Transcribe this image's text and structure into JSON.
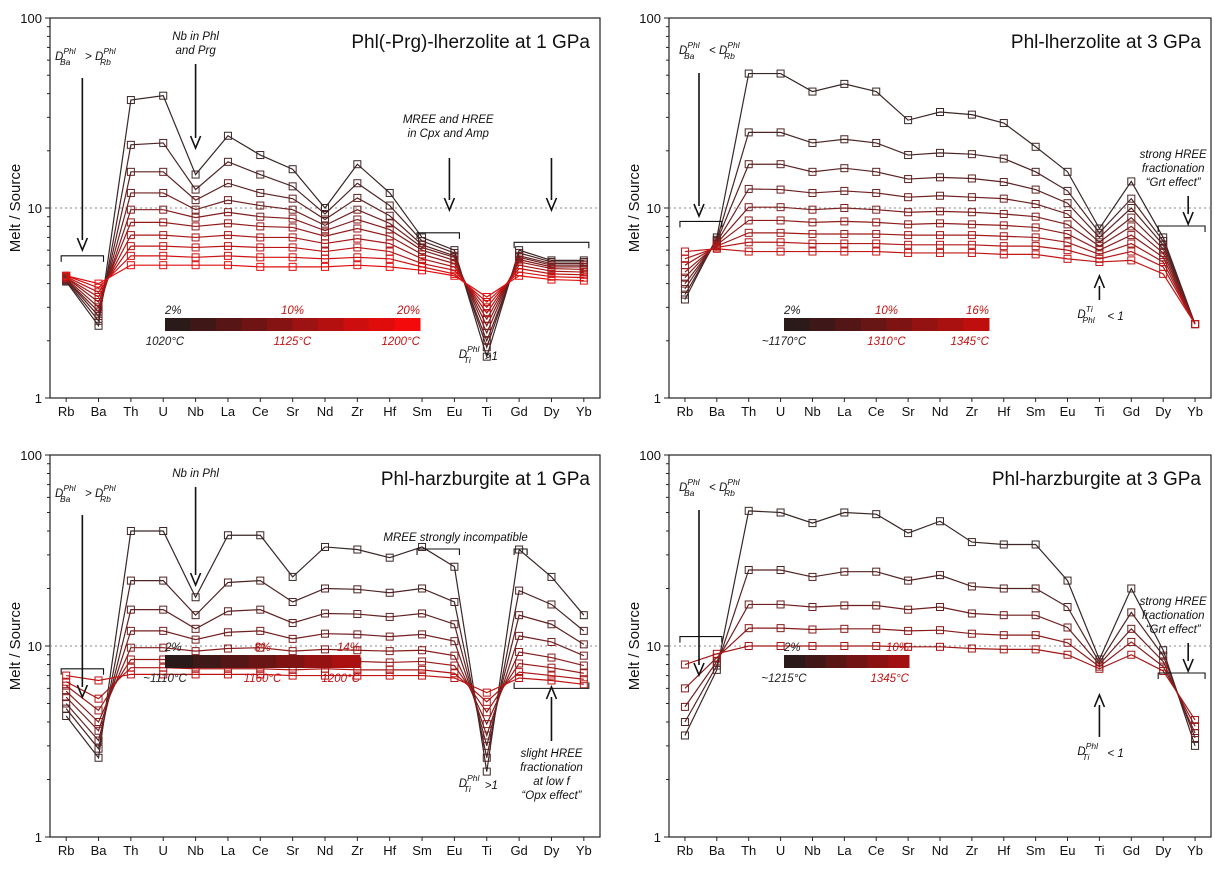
{
  "chart_data": [
    {
      "type": "line",
      "title": "Phl(-Prg)-lherzolite at 1 GPa",
      "ylabel": "Melt / Source",
      "yscale": "log",
      "ylim": [
        1,
        100
      ],
      "y_ticks": [
        "1",
        "10",
        "100"
      ],
      "reference_line": 10,
      "categories": [
        "Rb",
        "Ba",
        "Th",
        "U",
        "Nb",
        "La",
        "Ce",
        "Sr",
        "Nd",
        "Zr",
        "Hf",
        "Sm",
        "Eu",
        "Ti",
        "Gd",
        "Dy",
        "Yb"
      ],
      "colorbar": {
        "top_labels": [
          "2%",
          "10%",
          "20%"
        ],
        "bottom_labels": [
          "1020°C",
          "1125°C",
          "1200°C"
        ],
        "colors": [
          "#2b1a1a",
          "#401717",
          "#571515",
          "#6e1414",
          "#861313",
          "#9d1212",
          "#b41010",
          "#cc0e0e",
          "#e00c0c",
          "#f40a0a"
        ]
      },
      "series_colors": [
        "#3a2626",
        "#4d2323",
        "#5e2121",
        "#6f1f1f",
        "#821c1c",
        "#951a1a",
        "#a81717",
        "#bb1414",
        "#cf1111",
        "#e20d0d"
      ],
      "series": [
        {
          "values": [
            4.1,
            2.4,
            37,
            39,
            15,
            24,
            19,
            16,
            10,
            17,
            12,
            7.0,
            6.0,
            1.65,
            6.0,
            5.3,
            5.3
          ]
        },
        {
          "values": [
            4.15,
            2.55,
            21.5,
            22,
            12.5,
            17.5,
            15,
            13,
            9.3,
            13.5,
            10.3,
            6.7,
            5.8,
            1.85,
            5.8,
            5.2,
            5.2
          ]
        },
        {
          "values": [
            4.2,
            2.7,
            15.5,
            15.5,
            11,
            13.5,
            12,
            11.2,
            8.7,
            11.3,
            9.1,
            6.4,
            5.6,
            2.0,
            5.6,
            5.1,
            5.1
          ]
        },
        {
          "values": [
            4.2,
            2.85,
            12,
            12,
            9.8,
            11,
            10.3,
            9.8,
            8.1,
            9.8,
            8.3,
            6.2,
            5.5,
            2.2,
            5.5,
            5.0,
            5.0
          ]
        },
        {
          "values": [
            4.25,
            3.0,
            9.8,
            9.8,
            8.9,
            9.5,
            9.0,
            8.8,
            7.6,
            8.7,
            7.7,
            6.0,
            5.3,
            2.4,
            5.35,
            4.9,
            4.9
          ]
        },
        {
          "values": [
            4.3,
            3.2,
            8.4,
            8.4,
            8.0,
            8.3,
            8.0,
            7.9,
            7.1,
            7.8,
            7.1,
            5.7,
            5.1,
            2.6,
            5.2,
            4.8,
            4.75
          ]
        },
        {
          "values": [
            4.3,
            3.4,
            7.2,
            7.2,
            7.0,
            7.2,
            7.0,
            7.0,
            6.5,
            6.9,
            6.5,
            5.4,
            4.9,
            2.8,
            5.0,
            4.65,
            4.6
          ]
        },
        {
          "values": [
            4.35,
            3.6,
            6.3,
            6.3,
            6.2,
            6.3,
            6.2,
            6.2,
            5.9,
            6.2,
            5.9,
            5.1,
            4.7,
            3.0,
            4.8,
            4.5,
            4.45
          ]
        },
        {
          "values": [
            4.4,
            3.8,
            5.6,
            5.6,
            5.5,
            5.6,
            5.5,
            5.5,
            5.4,
            5.5,
            5.4,
            4.9,
            4.5,
            3.2,
            4.6,
            4.35,
            4.3
          ]
        },
        {
          "values": [
            4.4,
            4.0,
            5.0,
            5.0,
            5.0,
            5.0,
            4.9,
            4.9,
            4.9,
            5.0,
            4.9,
            4.7,
            4.4,
            3.4,
            4.4,
            4.2,
            4.15
          ]
        }
      ],
      "annotations": {
        "nb": [
          "Nb in Phl",
          "and Prg"
        ],
        "ree": [
          "MREE and HREE",
          "in Cpx and Amp"
        ],
        "ti": ">1"
      }
    },
    {
      "type": "line",
      "title": "Phl-lherzolite at 3 GPa",
      "ylabel": "Melt / Source",
      "yscale": "log",
      "ylim": [
        1,
        100
      ],
      "y_ticks": [
        "1",
        "10",
        "100"
      ],
      "reference_line": 10,
      "categories": [
        "Rb",
        "Ba",
        "Th",
        "U",
        "Nb",
        "La",
        "Ce",
        "Sr",
        "Nd",
        "Zr",
        "Hf",
        "Sm",
        "Eu",
        "Ti",
        "Gd",
        "Dy",
        "Yb"
      ],
      "colorbar": {
        "top_labels": [
          "2%",
          "10%",
          "16%"
        ],
        "bottom_labels": [
          "~1170°C",
          "1310°C",
          "1345°C"
        ],
        "colors": [
          "#2b1a1a",
          "#3e1818",
          "#531616",
          "#681515",
          "#7e1313",
          "#941212",
          "#a91010",
          "#bf0e0e"
        ]
      },
      "series_colors": [
        "#3a2626",
        "#4b2424",
        "#5c2222",
        "#6d2020",
        "#7e1e1e",
        "#8f1c1c",
        "#a01a1a",
        "#b21818",
        "#c31616"
      ],
      "series": [
        {
          "values": [
            3.3,
            7.0,
            51,
            51,
            41,
            45,
            41,
            29,
            32,
            31,
            28,
            21,
            15.5,
            7.8,
            13.8,
            7.0,
            2.45
          ]
        },
        {
          "values": [
            3.5,
            6.8,
            25,
            25,
            22,
            23,
            22,
            19,
            19.5,
            19.2,
            18.2,
            15.5,
            12.3,
            7.4,
            11.2,
            6.7,
            2.45
          ]
        },
        {
          "values": [
            3.75,
            6.7,
            17,
            17,
            15.5,
            16.2,
            15.5,
            14.2,
            14.5,
            14.3,
            13.7,
            12.5,
            10.6,
            7.0,
            10.0,
            6.4,
            2.45
          ]
        },
        {
          "values": [
            4.0,
            6.6,
            12.6,
            12.5,
            12,
            12.3,
            12,
            11.4,
            11.6,
            11.4,
            11.2,
            10.5,
            9.3,
            6.6,
            8.9,
            6.1,
            2.45
          ]
        },
        {
          "values": [
            4.3,
            6.5,
            10.1,
            10.1,
            9.8,
            10,
            9.8,
            9.5,
            9.6,
            9.5,
            9.3,
            9.0,
            8.2,
            6.3,
            8.0,
            5.8,
            2.45
          ]
        },
        {
          "values": [
            4.6,
            6.4,
            8.6,
            8.6,
            8.4,
            8.5,
            8.4,
            8.2,
            8.3,
            8.2,
            8.1,
            7.9,
            7.3,
            6.0,
            7.2,
            5.5,
            2.45
          ]
        },
        {
          "values": [
            5.0,
            6.3,
            7.4,
            7.4,
            7.3,
            7.3,
            7.3,
            7.2,
            7.2,
            7.2,
            7.1,
            7.0,
            6.6,
            5.7,
            6.5,
            5.2,
            2.45
          ]
        },
        {
          "values": [
            5.4,
            6.2,
            6.6,
            6.6,
            6.5,
            6.5,
            6.5,
            6.4,
            6.4,
            6.4,
            6.3,
            6.3,
            6.0,
            5.4,
            5.9,
            4.9,
            2.45
          ]
        },
        {
          "values": [
            5.9,
            6.1,
            5.9,
            5.9,
            5.9,
            5.9,
            5.9,
            5.8,
            5.8,
            5.8,
            5.7,
            5.7,
            5.4,
            5.2,
            5.3,
            4.5,
            2.45
          ]
        }
      ],
      "annotations": {
        "grt": [
          "strong HREE",
          "fractionation",
          "“Grt effect”"
        ],
        "ti": "< 1"
      }
    },
    {
      "type": "line",
      "title": "Phl-harzburgite at 1 GPa",
      "ylabel": "Melt / Source",
      "yscale": "log",
      "ylim": [
        1,
        100
      ],
      "y_ticks": [
        "1",
        "10",
        "100"
      ],
      "reference_line": 10,
      "categories": [
        "Rb",
        "Ba",
        "Th",
        "U",
        "Nb",
        "La",
        "Ce",
        "Sr",
        "Nd",
        "Zr",
        "Hf",
        "Sm",
        "Eu",
        "Ti",
        "Gd",
        "Dy",
        "Yb"
      ],
      "colorbar": {
        "top_labels": [
          "2%",
          "8%",
          "14%"
        ],
        "bottom_labels": [
          "~1110°C",
          "1160°C",
          "1200°C"
        ],
        "colors": [
          "#2b1a1a",
          "#3f1818",
          "#541616",
          "#691515",
          "#7f1313",
          "#941212",
          "#aa1010"
        ]
      },
      "series_colors": [
        "#3a2626",
        "#4d2323",
        "#602121",
        "#731e1e",
        "#861b1b",
        "#991919",
        "#ac1616",
        "#bf1313"
      ],
      "series": [
        {
          "values": [
            4.3,
            2.6,
            40,
            40,
            18,
            38,
            38,
            23,
            33,
            32,
            29,
            33,
            26,
            2.2,
            32,
            23,
            14.5
          ]
        },
        {
          "values": [
            4.7,
            2.9,
            22,
            22,
            14.5,
            21.5,
            22,
            17,
            20,
            19.8,
            19,
            20,
            17,
            2.6,
            19.5,
            16.5,
            12
          ]
        },
        {
          "values": [
            5.0,
            3.2,
            15.5,
            15.5,
            12.3,
            15.2,
            15.5,
            13.2,
            14.8,
            14.7,
            14.2,
            14.8,
            13,
            3.0,
            14.5,
            13,
            10.2
          ]
        },
        {
          "values": [
            5.4,
            3.6,
            12,
            12,
            10.8,
            11.8,
            12,
            10.9,
            11.6,
            11.5,
            11.2,
            11.5,
            10.6,
            3.4,
            11.3,
            10.5,
            8.9
          ]
        },
        {
          "values": [
            5.8,
            4.0,
            9.8,
            9.8,
            9.4,
            9.7,
            9.8,
            9.4,
            9.6,
            9.5,
            9.4,
            9.5,
            8.9,
            3.9,
            9.3,
            8.7,
            7.9
          ]
        },
        {
          "values": [
            6.2,
            4.6,
            8.5,
            8.5,
            8.3,
            8.4,
            8.5,
            8.3,
            8.4,
            8.3,
            8.2,
            8.3,
            7.9,
            4.5,
            8.1,
            7.7,
            7.2
          ]
        },
        {
          "values": [
            6.5,
            5.3,
            7.7,
            7.7,
            7.6,
            7.6,
            7.6,
            7.5,
            7.6,
            7.5,
            7.5,
            7.5,
            7.2,
            5.1,
            7.3,
            7.0,
            6.7
          ]
        },
        {
          "values": [
            7.0,
            6.6,
            7.1,
            7.1,
            7.1,
            7.1,
            7.1,
            7.0,
            7.0,
            7.0,
            7.0,
            7.0,
            6.8,
            5.7,
            6.8,
            6.6,
            6.3
          ]
        }
      ],
      "annotations": {
        "nb": [
          "Nb in Phl"
        ],
        "mree": [
          "MREE strongly incompatible"
        ],
        "opx": [
          "slight HREE",
          "fractionation",
          "at low f",
          "“Opx effect”"
        ],
        "ti": ">1"
      }
    },
    {
      "type": "line",
      "title": "Phl-harzburgite at 3 GPa",
      "ylabel": "Melt / Source",
      "yscale": "log",
      "ylim": [
        1,
        100
      ],
      "y_ticks": [
        "1",
        "10",
        "100"
      ],
      "reference_line": 10,
      "categories": [
        "Rb",
        "Ba",
        "Th",
        "U",
        "Nb",
        "La",
        "Ce",
        "Sr",
        "Nd",
        "Zr",
        "Hf",
        "Sm",
        "Eu",
        "Ti",
        "Gd",
        "Dy",
        "Yb"
      ],
      "colorbar": {
        "top_labels": [
          "2%",
          "10%"
        ],
        "bottom_labels": [
          "~1215°C",
          "1345°C"
        ],
        "colors": [
          "#2b1a1a",
          "#421717",
          "#5a1515",
          "#721414",
          "#8a1212",
          "#a21111"
        ]
      },
      "series_colors": [
        "#3a2626",
        "#552222",
        "#6f1e1e",
        "#891a1a",
        "#a31616"
      ],
      "series": [
        {
          "values": [
            3.4,
            7.5,
            51,
            50,
            44,
            50,
            49,
            39,
            45,
            35,
            34,
            34,
            22,
            8.5,
            20,
            9.5,
            3.0
          ]
        },
        {
          "values": [
            4.0,
            7.9,
            25,
            25,
            23,
            24.5,
            24.5,
            22,
            23.5,
            20.5,
            20,
            20,
            16,
            8.2,
            15,
            8.9,
            3.3
          ]
        },
        {
          "values": [
            4.8,
            8.3,
            16.5,
            16.5,
            16,
            16.3,
            16.3,
            15.5,
            16,
            14.8,
            14.5,
            14.5,
            12.5,
            8.0,
            12.3,
            8.3,
            3.5
          ]
        },
        {
          "values": [
            6.0,
            8.7,
            12.4,
            12.4,
            12.2,
            12.3,
            12.3,
            12.0,
            12.1,
            11.6,
            11.4,
            11.4,
            10.4,
            7.8,
            10.5,
            7.8,
            3.8
          ]
        },
        {
          "values": [
            8.0,
            9.1,
            10.0,
            10.0,
            10.0,
            10.0,
            10.0,
            9.9,
            9.9,
            9.7,
            9.6,
            9.6,
            9.0,
            7.6,
            9.0,
            7.4,
            4.1
          ]
        }
      ],
      "annotations": {
        "grt": [
          "strong HREE",
          "fractionation",
          "“Grt effect”"
        ],
        "ti": "< 1"
      }
    }
  ]
}
